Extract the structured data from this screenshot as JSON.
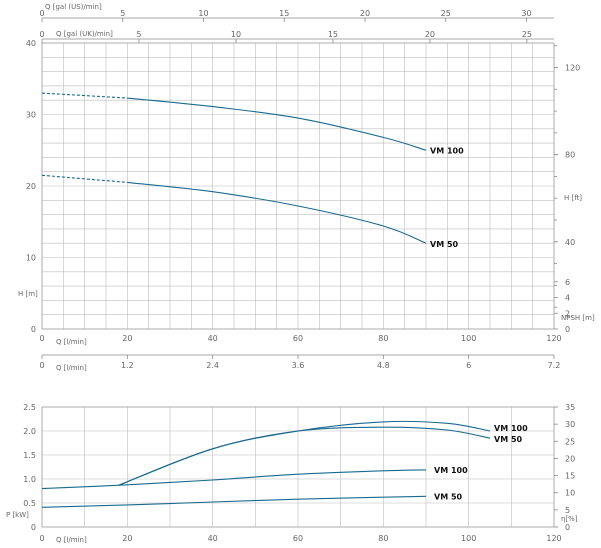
{
  "chart_data": [
    {
      "type": "line",
      "name": "head",
      "flow_lpm_ticks": [
        0,
        20,
        40,
        60,
        80,
        100,
        120
      ],
      "flow_m3h_ticks": [
        "0",
        "1.2",
        "2.4",
        "3.6",
        "4.8",
        "6",
        "7.2"
      ],
      "flow_us_ticks": [
        0,
        5,
        10,
        15,
        20,
        25,
        30
      ],
      "flow_uk_ticks": [
        0,
        5,
        10,
        15,
        20,
        25
      ],
      "head_m_ticks": [
        0,
        10,
        20,
        30,
        40
      ],
      "head_ft_ticks": [
        40,
        80,
        120
      ],
      "npsh_ticks": [
        0,
        2,
        4,
        6
      ],
      "xlim": [
        0,
        120
      ],
      "ylim": [
        0,
        40
      ],
      "labels": {
        "us": "Q [gal (US)/min]",
        "uk": "Q [gal (UK)/min]",
        "lpm": "Q [l/min]",
        "m3h": "Q [l/min]",
        "head_m": "H [m]",
        "head_ft": "H [ft]",
        "npsh": "NPSH [m]"
      },
      "series": [
        {
          "name": "VM 100",
          "dashed_x": [
            0,
            20
          ],
          "dashed_y": [
            33,
            32.3
          ],
          "x": [
            20,
            40,
            60,
            80,
            90
          ],
          "y": [
            32.3,
            31.1,
            29.5,
            26.8,
            25
          ]
        },
        {
          "name": "VM 50",
          "dashed_x": [
            0,
            20
          ],
          "dashed_y": [
            21.5,
            20.5
          ],
          "x": [
            20,
            40,
            60,
            80,
            90
          ],
          "y": [
            20.5,
            19.2,
            17.2,
            14.4,
            12
          ]
        }
      ]
    },
    {
      "type": "line",
      "name": "power",
      "flow_lpm_ticks": [
        0,
        20,
        40,
        60,
        80,
        100,
        120
      ],
      "power_ticks": [
        "0",
        "0.5",
        "1.0",
        "1.5",
        "2.0",
        "2.5"
      ],
      "eff_ticks": [
        0,
        5,
        10,
        15,
        20,
        25,
        30,
        35
      ],
      "xlim": [
        0,
        120
      ],
      "ylim": [
        0,
        2.5
      ],
      "labels": {
        "lpm": "Q [l/min]",
        "power": "P [kW]",
        "eff": "η[%]"
      },
      "series": [
        {
          "name": "VM 100",
          "kind": "efficiency",
          "x": [
            18,
            40,
            60,
            80,
            95,
            105
          ],
          "y": [
            0.87,
            1.63,
            2.0,
            2.19,
            2.16,
            2.0
          ]
        },
        {
          "name": "VM 50",
          "kind": "efficiency",
          "x": [
            18,
            40,
            60,
            80,
            95,
            105
          ],
          "y": [
            0.87,
            1.63,
            2.0,
            2.08,
            2.02,
            1.85
          ]
        },
        {
          "name": "VM 100",
          "kind": "power",
          "x": [
            0,
            20,
            40,
            60,
            80,
            90
          ],
          "y": [
            0.8,
            0.88,
            0.98,
            1.1,
            1.17,
            1.19
          ]
        },
        {
          "name": "VM 50",
          "kind": "power",
          "x": [
            0,
            20,
            40,
            60,
            80,
            90
          ],
          "y": [
            0.41,
            0.46,
            0.52,
            0.58,
            0.62,
            0.64
          ]
        }
      ]
    }
  ]
}
